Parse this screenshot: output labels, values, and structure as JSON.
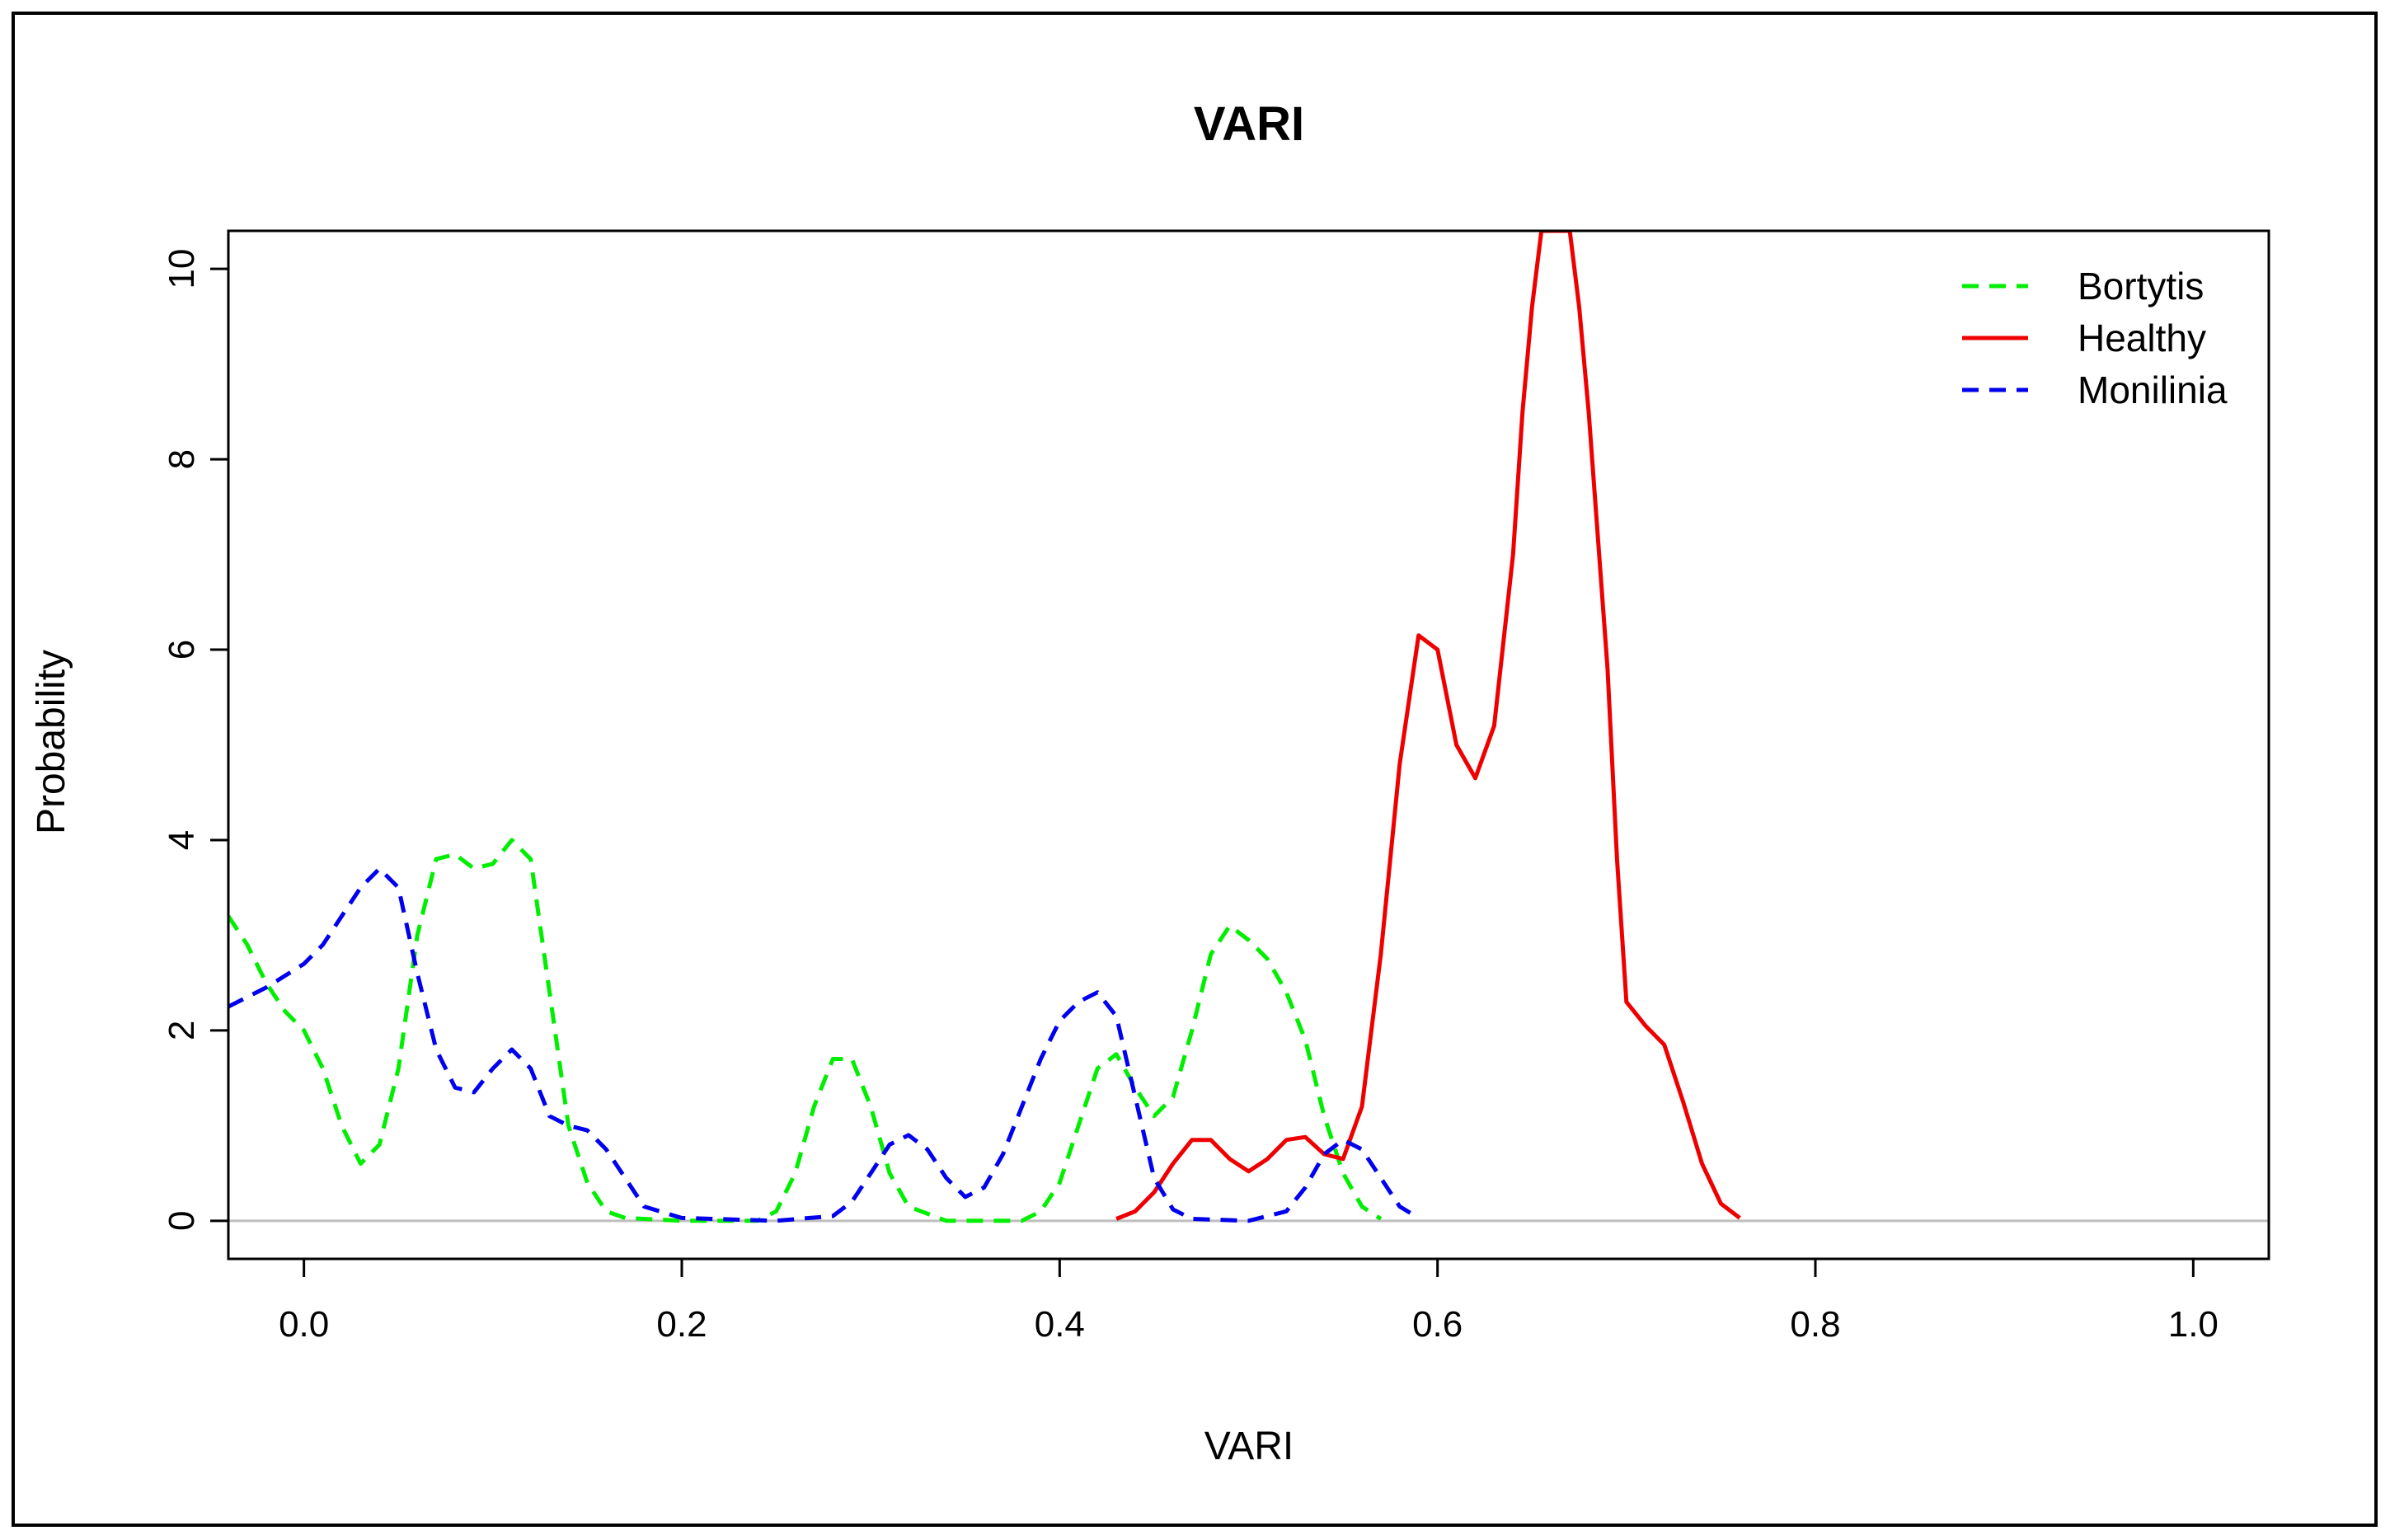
{
  "chart_data": {
    "type": "line",
    "title": "VARI",
    "xlabel": "VARI",
    "ylabel": "Probability",
    "xlim": [
      -0.04,
      1.04
    ],
    "ylim": [
      -0.4,
      10.4
    ],
    "xticks": [
      "0.0",
      "0.2",
      "0.4",
      "0.6",
      "0.8",
      "1.0"
    ],
    "xtick_values": [
      0.0,
      0.2,
      0.4,
      0.6,
      0.8,
      1.0
    ],
    "yticks": [
      "0",
      "2",
      "4",
      "6",
      "8",
      "10"
    ],
    "ytick_values": [
      0,
      2,
      4,
      6,
      8,
      10
    ],
    "baseline": 0,
    "legend_position": "top-right",
    "grid": false,
    "series": [
      {
        "name": "Bortytis",
        "color": "#00ee00",
        "dashed": true,
        "points": [
          [
            -0.04,
            3.2
          ],
          [
            -0.03,
            2.9
          ],
          [
            -0.02,
            2.5
          ],
          [
            -0.01,
            2.2
          ],
          [
            0.0,
            2.0
          ],
          [
            0.01,
            1.6
          ],
          [
            0.02,
            1.0
          ],
          [
            0.03,
            0.6
          ],
          [
            0.04,
            0.8
          ],
          [
            0.05,
            1.6
          ],
          [
            0.06,
            3.0
          ],
          [
            0.07,
            3.8
          ],
          [
            0.08,
            3.85
          ],
          [
            0.09,
            3.7
          ],
          [
            0.1,
            3.75
          ],
          [
            0.11,
            4.0
          ],
          [
            0.12,
            3.8
          ],
          [
            0.13,
            2.4
          ],
          [
            0.14,
            1.0
          ],
          [
            0.15,
            0.4
          ],
          [
            0.16,
            0.1
          ],
          [
            0.17,
            0.03
          ],
          [
            0.2,
            0.0
          ],
          [
            0.24,
            0.0
          ],
          [
            0.25,
            0.1
          ],
          [
            0.26,
            0.5
          ],
          [
            0.27,
            1.2
          ],
          [
            0.28,
            1.7
          ],
          [
            0.29,
            1.7
          ],
          [
            0.3,
            1.2
          ],
          [
            0.31,
            0.5
          ],
          [
            0.32,
            0.15
          ],
          [
            0.34,
            0.0
          ],
          [
            0.38,
            0.0
          ],
          [
            0.39,
            0.1
          ],
          [
            0.4,
            0.4
          ],
          [
            0.41,
            1.0
          ],
          [
            0.42,
            1.6
          ],
          [
            0.43,
            1.75
          ],
          [
            0.44,
            1.4
          ],
          [
            0.45,
            1.1
          ],
          [
            0.46,
            1.3
          ],
          [
            0.47,
            2.0
          ],
          [
            0.48,
            2.8
          ],
          [
            0.49,
            3.1
          ],
          [
            0.5,
            2.95
          ],
          [
            0.51,
            2.75
          ],
          [
            0.52,
            2.4
          ],
          [
            0.53,
            1.9
          ],
          [
            0.54,
            1.1
          ],
          [
            0.55,
            0.5
          ],
          [
            0.56,
            0.15
          ],
          [
            0.57,
            0.02
          ]
        ]
      },
      {
        "name": "Healthy",
        "color": "#ee0000",
        "dashed": false,
        "points": [
          [
            0.43,
            0.02
          ],
          [
            0.44,
            0.1
          ],
          [
            0.45,
            0.3
          ],
          [
            0.46,
            0.6
          ],
          [
            0.47,
            0.85
          ],
          [
            0.48,
            0.85
          ],
          [
            0.49,
            0.65
          ],
          [
            0.5,
            0.52
          ],
          [
            0.51,
            0.65
          ],
          [
            0.52,
            0.85
          ],
          [
            0.53,
            0.88
          ],
          [
            0.54,
            0.7
          ],
          [
            0.55,
            0.65
          ],
          [
            0.56,
            1.2
          ],
          [
            0.57,
            2.8
          ],
          [
            0.58,
            4.8
          ],
          [
            0.59,
            6.15
          ],
          [
            0.6,
            6.0
          ],
          [
            0.61,
            5.0
          ],
          [
            0.62,
            4.65
          ],
          [
            0.63,
            5.2
          ],
          [
            0.64,
            7.0
          ],
          [
            0.645,
            8.5
          ],
          [
            0.65,
            9.6
          ],
          [
            0.655,
            10.4
          ],
          [
            0.67,
            10.4
          ],
          [
            0.675,
            9.6
          ],
          [
            0.68,
            8.5
          ],
          [
            0.69,
            5.8
          ],
          [
            0.695,
            3.8
          ],
          [
            0.7,
            2.3
          ],
          [
            0.71,
            2.05
          ],
          [
            0.72,
            1.85
          ],
          [
            0.73,
            1.25
          ],
          [
            0.74,
            0.6
          ],
          [
            0.75,
            0.18
          ],
          [
            0.76,
            0.03
          ]
        ]
      },
      {
        "name": "Monilinia",
        "color": "#0000ee",
        "dashed": true,
        "points": [
          [
            -0.04,
            2.25
          ],
          [
            -0.02,
            2.45
          ],
          [
            0.0,
            2.7
          ],
          [
            0.01,
            2.9
          ],
          [
            0.02,
            3.2
          ],
          [
            0.03,
            3.5
          ],
          [
            0.04,
            3.7
          ],
          [
            0.05,
            3.5
          ],
          [
            0.06,
            2.6
          ],
          [
            0.07,
            1.8
          ],
          [
            0.08,
            1.4
          ],
          [
            0.09,
            1.35
          ],
          [
            0.1,
            1.6
          ],
          [
            0.11,
            1.8
          ],
          [
            0.12,
            1.6
          ],
          [
            0.13,
            1.1
          ],
          [
            0.14,
            1.0
          ],
          [
            0.15,
            0.95
          ],
          [
            0.16,
            0.75
          ],
          [
            0.17,
            0.45
          ],
          [
            0.18,
            0.15
          ],
          [
            0.2,
            0.03
          ],
          [
            0.25,
            0.0
          ],
          [
            0.28,
            0.05
          ],
          [
            0.29,
            0.2
          ],
          [
            0.3,
            0.5
          ],
          [
            0.31,
            0.8
          ],
          [
            0.32,
            0.9
          ],
          [
            0.33,
            0.75
          ],
          [
            0.34,
            0.45
          ],
          [
            0.35,
            0.25
          ],
          [
            0.36,
            0.35
          ],
          [
            0.37,
            0.7
          ],
          [
            0.38,
            1.2
          ],
          [
            0.39,
            1.7
          ],
          [
            0.4,
            2.1
          ],
          [
            0.41,
            2.3
          ],
          [
            0.42,
            2.4
          ],
          [
            0.43,
            2.15
          ],
          [
            0.44,
            1.3
          ],
          [
            0.45,
            0.45
          ],
          [
            0.46,
            0.12
          ],
          [
            0.47,
            0.02
          ],
          [
            0.5,
            0.0
          ],
          [
            0.52,
            0.1
          ],
          [
            0.53,
            0.35
          ],
          [
            0.54,
            0.7
          ],
          [
            0.55,
            0.85
          ],
          [
            0.56,
            0.75
          ],
          [
            0.57,
            0.45
          ],
          [
            0.58,
            0.15
          ],
          [
            0.59,
            0.03
          ]
        ]
      }
    ]
  }
}
